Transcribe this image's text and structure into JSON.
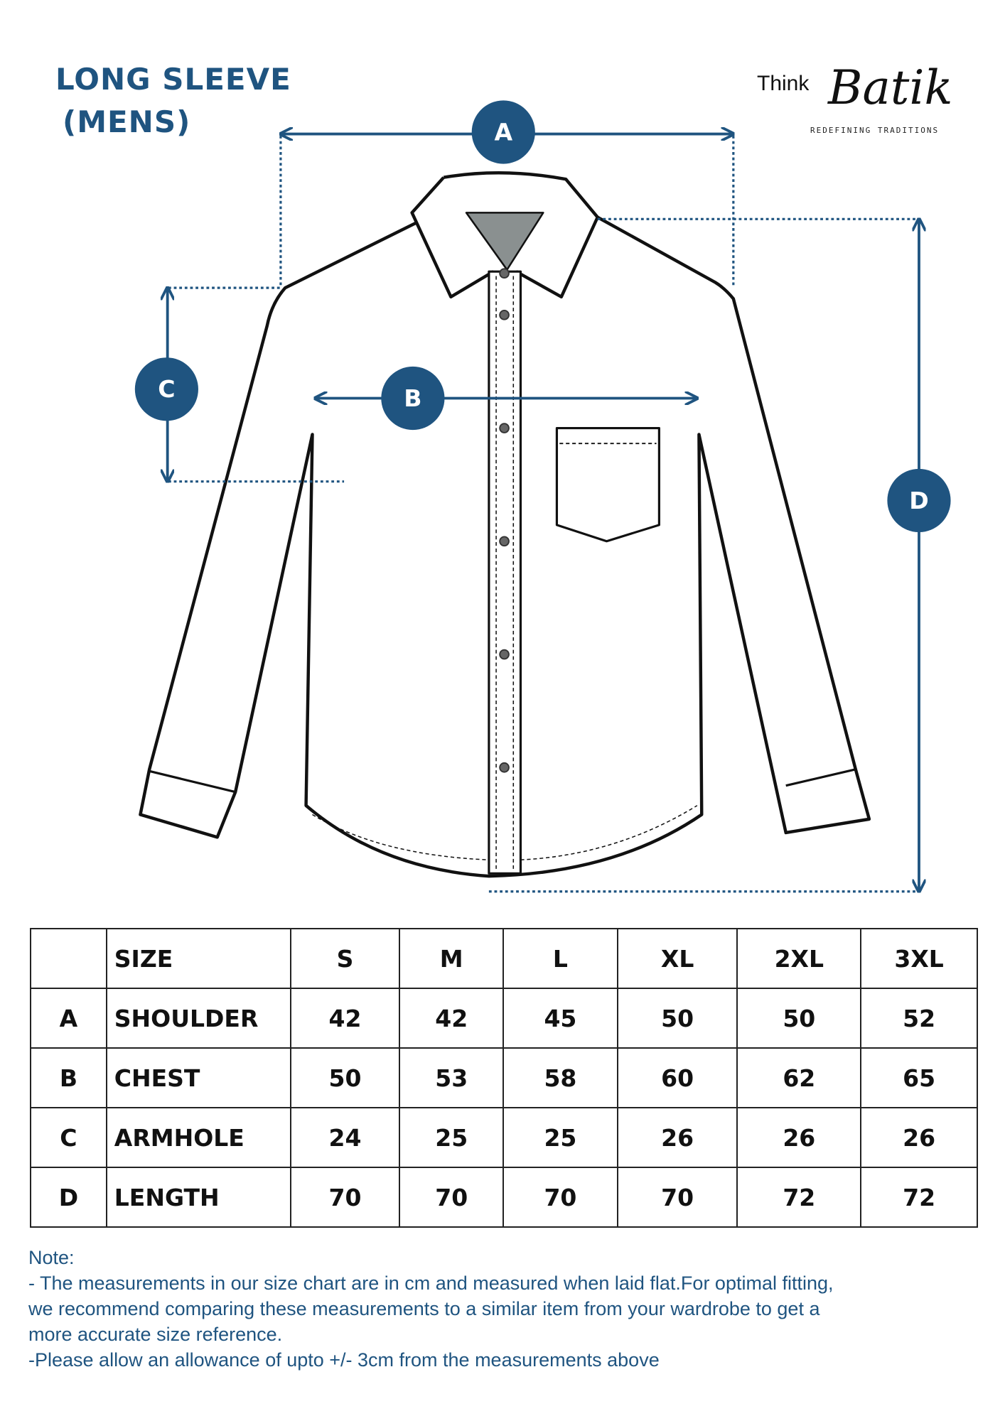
{
  "title": {
    "line1": "LONG SLEEVE",
    "line2": "(MENS)"
  },
  "logo": {
    "think": "Think",
    "batik": "Batik",
    "tagline": "REDEFINING TRADITIONS"
  },
  "markers": {
    "a": "A",
    "b": "B",
    "c": "C",
    "d": "D"
  },
  "colors": {
    "accent": "#1f5480",
    "ink": "#111111"
  },
  "table": {
    "header": [
      "",
      "SIZE",
      "S",
      "M",
      "L",
      "XL",
      "2XL",
      "3XL"
    ],
    "rows": [
      [
        "A",
        "SHOULDER",
        "42",
        "42",
        "45",
        "50",
        "50",
        "52"
      ],
      [
        "B",
        "CHEST",
        "50",
        "53",
        "58",
        "60",
        "62",
        "65"
      ],
      [
        "C",
        "ARMHOLE",
        "24",
        "25",
        "25",
        "26",
        "26",
        "26"
      ],
      [
        "D",
        "LENGTH",
        "70",
        "70",
        "70",
        "70",
        "72",
        "72"
      ]
    ]
  },
  "note": {
    "heading": "Note:",
    "line1": "- The measurements in our size chart are in cm and measured when laid flat.For optimal fitting,",
    "line2": "we recommend comparing these measurements to a similar item from your wardrobe to get a",
    "line3": "more accurate size reference.",
    "line4": "-Please allow an allowance of upto +/- 3cm from the measurements above"
  }
}
